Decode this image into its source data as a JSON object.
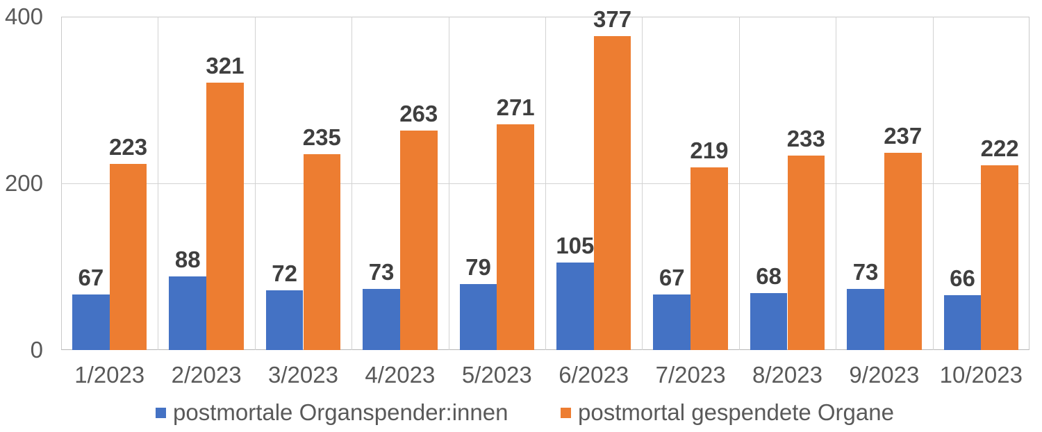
{
  "chart_data": {
    "type": "bar",
    "title": "",
    "xlabel": "",
    "ylabel": "",
    "categories": [
      "1/2023",
      "2/2023",
      "3/2023",
      "4/2023",
      "5/2023",
      "6/2023",
      "7/2023",
      "8/2023",
      "9/2023",
      "10/2023"
    ],
    "series": [
      {
        "name": "postmortale Organspender:innen",
        "color": "#4472C4",
        "values": [
          67,
          88,
          72,
          73,
          79,
          105,
          67,
          68,
          73,
          66
        ]
      },
      {
        "name": "postmortal gespendete Organe",
        "color": "#ED7D31",
        "values": [
          223,
          321,
          235,
          263,
          271,
          377,
          219,
          233,
          237,
          222
        ]
      }
    ],
    "ylim": [
      0,
      400
    ],
    "yticks": [
      0,
      200,
      400
    ],
    "grid": true,
    "data_labels": true,
    "legend_position": "bottom"
  },
  "colors": {
    "background": "#FFFFFF",
    "axis_text": "#595959",
    "data_label_text": "#3F3F3F",
    "gridline": "#D2D2D2",
    "axis_line": "#B5B5B5"
  }
}
